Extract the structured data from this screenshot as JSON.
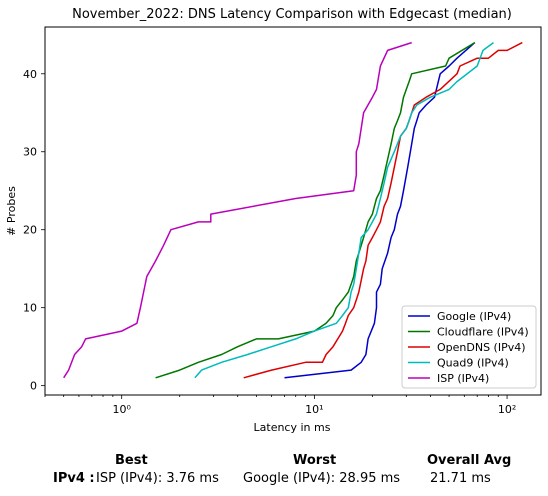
{
  "chart_data": {
    "type": "line",
    "title": "November_2022: DNS Latency Comparison with Edgecast (median)",
    "xlabel": "Latency in ms",
    "ylabel": "# Probes",
    "xscale": "log",
    "xlim": [
      0.4,
      150
    ],
    "ylim": [
      -1.2,
      46
    ],
    "xticks": [
      {
        "value": 1,
        "label": "10⁰"
      },
      {
        "value": 10,
        "label": "10¹"
      },
      {
        "value": 100,
        "label": "10²"
      }
    ],
    "yticks": [
      0,
      10,
      20,
      30,
      40
    ],
    "grid": false,
    "legend": "bottom-right",
    "series": [
      {
        "name": "Google (IPv4)",
        "color": "#0000cc",
        "points": [
          [
            7,
            1
          ],
          [
            15.5,
            2
          ],
          [
            17.5,
            3
          ],
          [
            18.5,
            4
          ],
          [
            19,
            6
          ],
          [
            20.5,
            8
          ],
          [
            21,
            10
          ],
          [
            21,
            12
          ],
          [
            22,
            13
          ],
          [
            22.5,
            15
          ],
          [
            24,
            17
          ],
          [
            25,
            19
          ],
          [
            26,
            20
          ],
          [
            27,
            22
          ],
          [
            28,
            23
          ],
          [
            29,
            25
          ],
          [
            29.5,
            26
          ],
          [
            30.5,
            28
          ],
          [
            32,
            31
          ],
          [
            33,
            33
          ],
          [
            34,
            34
          ],
          [
            35,
            35
          ],
          [
            38,
            36
          ],
          [
            42,
            37
          ],
          [
            43,
            38
          ],
          [
            45,
            40
          ],
          [
            50,
            41
          ],
          [
            55,
            42
          ],
          [
            68,
            44
          ]
        ]
      },
      {
        "name": "Cloudflare (IPv4)",
        "color": "#007700",
        "points": [
          [
            1.5,
            1
          ],
          [
            2,
            2
          ],
          [
            2.5,
            3
          ],
          [
            3.3,
            4
          ],
          [
            4,
            5
          ],
          [
            5,
            6
          ],
          [
            6.5,
            6
          ],
          [
            10,
            7
          ],
          [
            11.5,
            8
          ],
          [
            12.5,
            9
          ],
          [
            13,
            10
          ],
          [
            14,
            11
          ],
          [
            15,
            12
          ],
          [
            15.5,
            13
          ],
          [
            16,
            14
          ],
          [
            16.5,
            16
          ],
          [
            17,
            17
          ],
          [
            18,
            19
          ],
          [
            19,
            21
          ],
          [
            20,
            22
          ],
          [
            20.5,
            23
          ],
          [
            21,
            24
          ],
          [
            22,
            25
          ],
          [
            23,
            27
          ],
          [
            24,
            29
          ],
          [
            25,
            31
          ],
          [
            26,
            33
          ],
          [
            27,
            34
          ],
          [
            28,
            35
          ],
          [
            29,
            37
          ],
          [
            30,
            38
          ],
          [
            31,
            39
          ],
          [
            32,
            40
          ],
          [
            48,
            41
          ],
          [
            50,
            42
          ],
          [
            68,
            44
          ]
        ]
      },
      {
        "name": "OpenDNS (IPv4)",
        "color": "#dd0000",
        "points": [
          [
            4.3,
            1
          ],
          [
            6,
            2
          ],
          [
            9,
            3
          ],
          [
            11,
            3
          ],
          [
            11.5,
            4
          ],
          [
            12.5,
            5
          ],
          [
            14,
            7
          ],
          [
            14.5,
            8
          ],
          [
            15,
            9
          ],
          [
            16,
            10
          ],
          [
            16.5,
            11
          ],
          [
            17,
            12
          ],
          [
            18,
            15
          ],
          [
            18.5,
            16
          ],
          [
            19,
            18
          ],
          [
            20,
            19
          ],
          [
            21,
            20
          ],
          [
            22,
            21
          ],
          [
            23,
            23
          ],
          [
            24,
            24
          ],
          [
            25,
            26
          ],
          [
            26,
            28
          ],
          [
            27,
            30
          ],
          [
            28,
            32
          ],
          [
            30,
            33
          ],
          [
            31,
            34
          ],
          [
            32,
            35
          ],
          [
            33,
            36
          ],
          [
            38,
            37
          ],
          [
            45,
            38
          ],
          [
            55,
            40
          ],
          [
            57,
            41
          ],
          [
            70,
            42
          ],
          [
            80,
            42
          ],
          [
            90,
            43
          ],
          [
            100,
            43
          ],
          [
            120,
            44
          ]
        ]
      },
      {
        "name": "Quad9 (IPv4)",
        "color": "#00bbbb",
        "points": [
          [
            2.4,
            1
          ],
          [
            2.6,
            2
          ],
          [
            3.3,
            3
          ],
          [
            4.5,
            4
          ],
          [
            6,
            5
          ],
          [
            8,
            6
          ],
          [
            10,
            7
          ],
          [
            13,
            8
          ],
          [
            14,
            9
          ],
          [
            15,
            10
          ],
          [
            15.5,
            12
          ],
          [
            16,
            13
          ],
          [
            16.5,
            15
          ],
          [
            17,
            17
          ],
          [
            17.5,
            19
          ],
          [
            19,
            20
          ],
          [
            20,
            21
          ],
          [
            21,
            22
          ],
          [
            22,
            24
          ],
          [
            23,
            26
          ],
          [
            24,
            28
          ],
          [
            26,
            30
          ],
          [
            28,
            32
          ],
          [
            30,
            33
          ],
          [
            31,
            34
          ],
          [
            32,
            35
          ],
          [
            34,
            36
          ],
          [
            40,
            37
          ],
          [
            50,
            38
          ],
          [
            55,
            39
          ],
          [
            70,
            41
          ],
          [
            75,
            43
          ],
          [
            85,
            44
          ]
        ]
      },
      {
        "name": "ISP (IPv4)",
        "color": "#bb00bb",
        "points": [
          [
            0.5,
            1
          ],
          [
            0.53,
            2
          ],
          [
            0.57,
            4
          ],
          [
            0.62,
            5
          ],
          [
            0.65,
            6
          ],
          [
            1,
            7
          ],
          [
            1.2,
            8
          ],
          [
            1.25,
            10
          ],
          [
            1.3,
            12
          ],
          [
            1.35,
            14
          ],
          [
            1.5,
            16
          ],
          [
            1.65,
            18
          ],
          [
            1.8,
            20
          ],
          [
            2.5,
            21
          ],
          [
            2.9,
            21
          ],
          [
            2.9,
            22
          ],
          [
            8,
            24
          ],
          [
            16,
            25
          ],
          [
            16.5,
            27
          ],
          [
            16.5,
            30
          ],
          [
            17,
            31
          ],
          [
            17.5,
            33
          ],
          [
            18,
            35
          ],
          [
            20,
            37
          ],
          [
            21,
            38
          ],
          [
            22,
            41
          ],
          [
            24,
            43
          ],
          [
            32,
            44
          ]
        ]
      }
    ]
  },
  "summary": {
    "best_header": "Best",
    "worst_header": "Worst",
    "overall_header": "Overall Avg",
    "row_label": "IPv4 :",
    "best_value": "ISP (IPv4): 3.76 ms",
    "worst_value": "Google (IPv4): 28.95 ms",
    "overall_value": "21.71 ms"
  }
}
